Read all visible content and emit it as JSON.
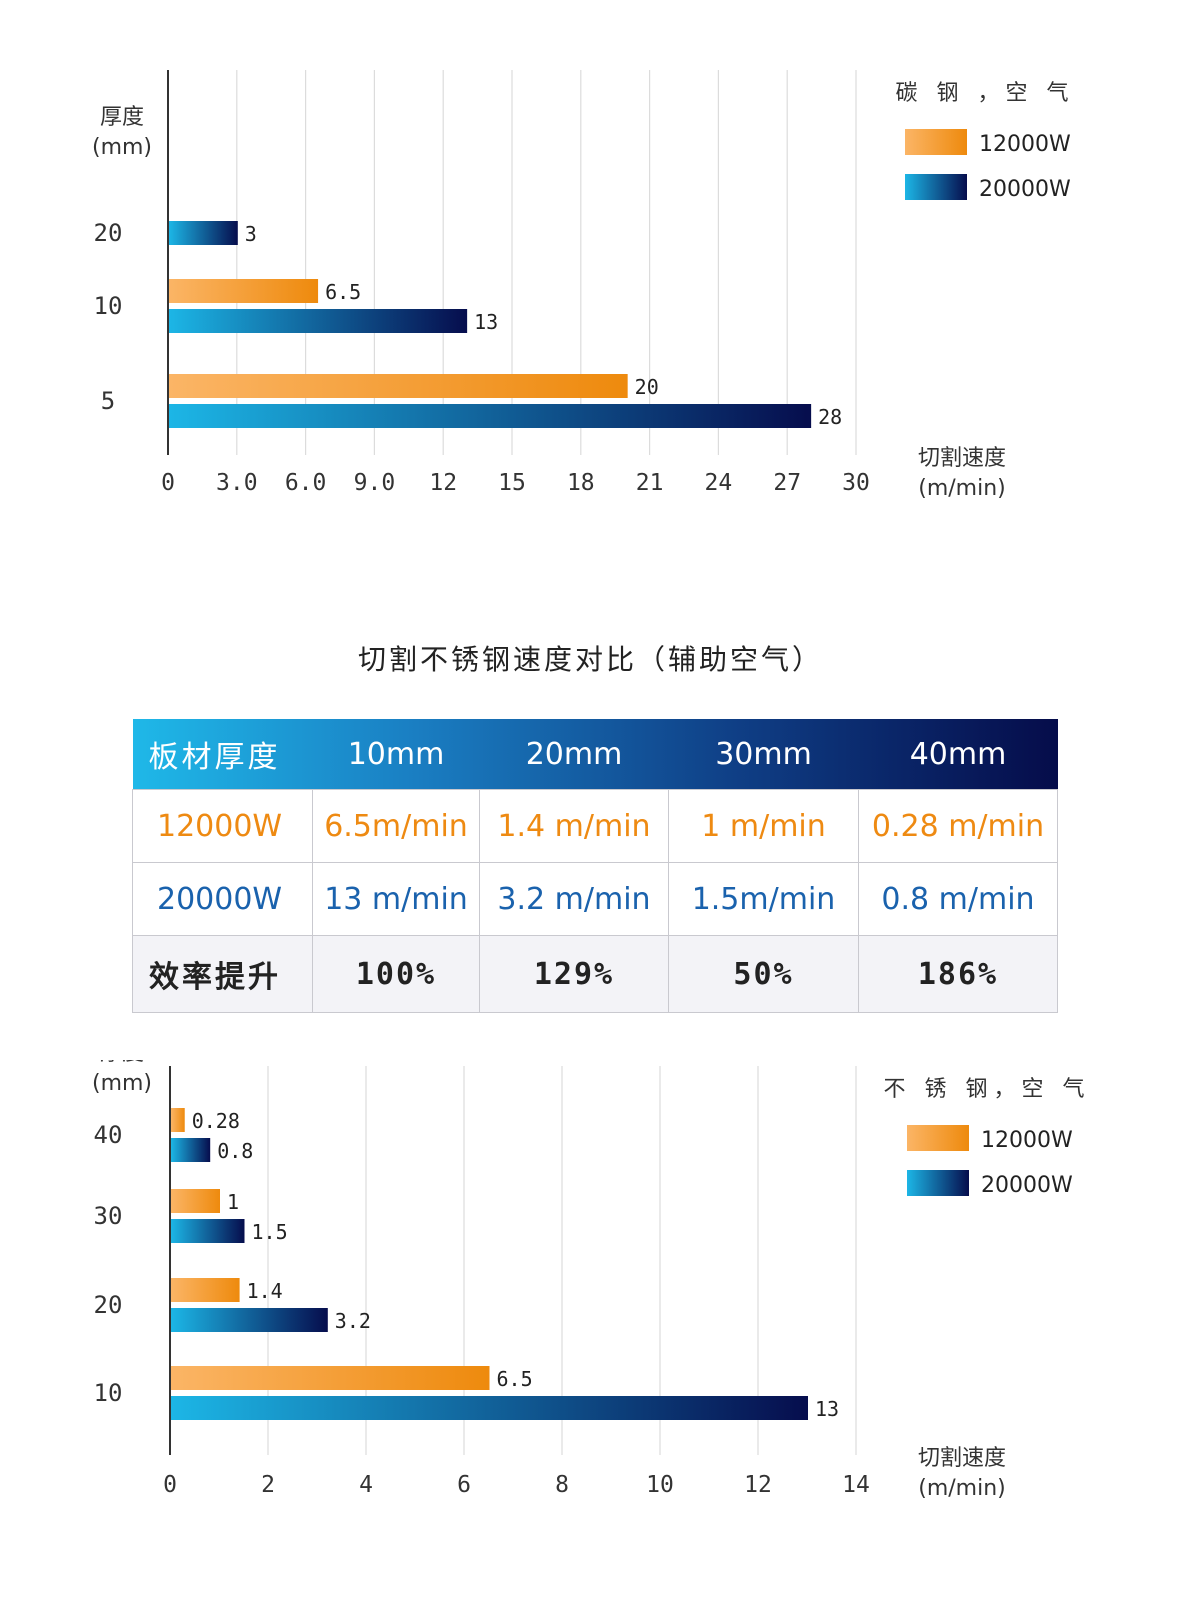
{
  "chart_data": [
    {
      "type": "bar",
      "orientation": "horizontal",
      "legend_title": "碳 钢 ，空 气",
      "ylabel": "厚度",
      "ylabel_unit": "(mm)",
      "xlabel": "切割速度",
      "xlabel_unit": "(m/min)",
      "categories": [
        "20",
        "10",
        "5"
      ],
      "series": [
        {
          "name": "12000W",
          "values": [
            null,
            6.5,
            20
          ],
          "labels": [
            "",
            "6.5",
            "20"
          ],
          "color_from": "#fbb566",
          "color_to": "#ee8a0d"
        },
        {
          "name": "20000W",
          "values": [
            3,
            13,
            28
          ],
          "labels": [
            "3",
            "13",
            "28"
          ],
          "color_from": "#1cb6e6",
          "color_to": "#060d4d"
        }
      ],
      "xlim": [
        0,
        30
      ],
      "xticks": [
        "0",
        "3.0",
        "6.0",
        "9.0",
        "12",
        "15",
        "18",
        "21",
        "24",
        "27",
        "30"
      ],
      "grid": true,
      "legend_position": "top-right"
    },
    {
      "type": "bar",
      "orientation": "horizontal",
      "legend_title": "不 锈 钢，空 气",
      "ylabel": "厚度",
      "ylabel_unit": "(mm)",
      "xlabel": "切割速度",
      "xlabel_unit": "(m/min)",
      "categories": [
        "40",
        "30",
        "20",
        "10"
      ],
      "series": [
        {
          "name": "12000W",
          "values": [
            0.28,
            1,
            1.4,
            6.5
          ],
          "labels": [
            "0.28",
            "1",
            "1.4",
            "6.5"
          ],
          "color_from": "#fbb566",
          "color_to": "#ee8a0d"
        },
        {
          "name": "20000W",
          "values": [
            0.8,
            1.5,
            3.2,
            13
          ],
          "labels": [
            "0.8",
            "1.5",
            "3.2",
            "13"
          ],
          "color_from": "#1cb6e6",
          "color_to": "#060d4d"
        }
      ],
      "xlim": [
        0,
        14
      ],
      "xticks": [
        "0",
        "2",
        "4",
        "6",
        "8",
        "10",
        "12",
        "14"
      ],
      "grid": true,
      "legend_position": "top-right"
    }
  ],
  "table": {
    "title": "切割不锈钢速度对比（辅助空气）",
    "header": [
      "板材厚度",
      "10mm",
      "20mm",
      "30mm",
      "40mm"
    ],
    "rows": [
      {
        "cells": [
          "12000W",
          "6.5m/min",
          "1.4 m/min",
          "1 m/min",
          "0.28 m/min"
        ]
      },
      {
        "cells": [
          "20000W",
          "13 m/min",
          "3.2 m/min",
          "1.5m/min",
          "0.8 m/min"
        ]
      },
      {
        "cells": [
          "效率提升",
          "100%",
          "129%",
          "50%",
          "186%"
        ]
      }
    ]
  }
}
